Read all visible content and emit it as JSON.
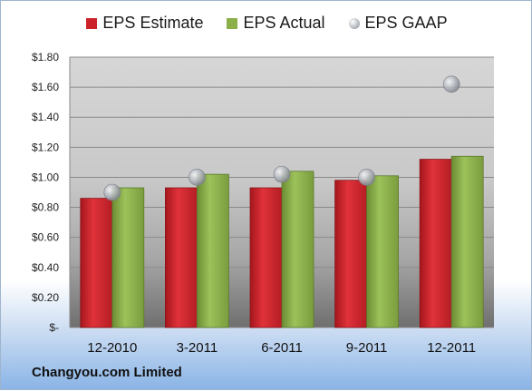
{
  "legend": {
    "estimate": "EPS Estimate",
    "actual": "EPS Actual",
    "gaap": "EPS GAAP"
  },
  "company": "Changyou.com Limited",
  "colors": {
    "estimate": "#cc2229",
    "actual": "#8bb04a",
    "gaap": "#b8bcc4"
  },
  "chart_data": {
    "type": "bar",
    "categories": [
      "12-2010",
      "3-2011",
      "6-2011",
      "9-2011",
      "12-2011"
    ],
    "series": [
      {
        "name": "EPS Estimate",
        "values": [
          0.86,
          0.93,
          0.93,
          0.98,
          1.12
        ]
      },
      {
        "name": "EPS Actual",
        "values": [
          0.93,
          1.02,
          1.04,
          1.01,
          1.14
        ]
      },
      {
        "name": "EPS GAAP",
        "values": [
          0.9,
          1.0,
          1.02,
          1.0,
          1.62
        ],
        "style": "marker"
      }
    ],
    "yticks": [
      {
        "value": 0,
        "label": "$-"
      },
      {
        "value": 0.2,
        "label": "$0.20"
      },
      {
        "value": 0.4,
        "label": "$0.40"
      },
      {
        "value": 0.6,
        "label": "$0.60"
      },
      {
        "value": 0.8,
        "label": "$0.80"
      },
      {
        "value": 1.0,
        "label": "$1.00"
      },
      {
        "value": 1.2,
        "label": "$1.20"
      },
      {
        "value": 1.4,
        "label": "$1.40"
      },
      {
        "value": 1.6,
        "label": "$1.60"
      },
      {
        "value": 1.8,
        "label": "$1.80"
      }
    ],
    "ylim": [
      0,
      1.8
    ],
    "grid": true,
    "legend_position": "top"
  }
}
